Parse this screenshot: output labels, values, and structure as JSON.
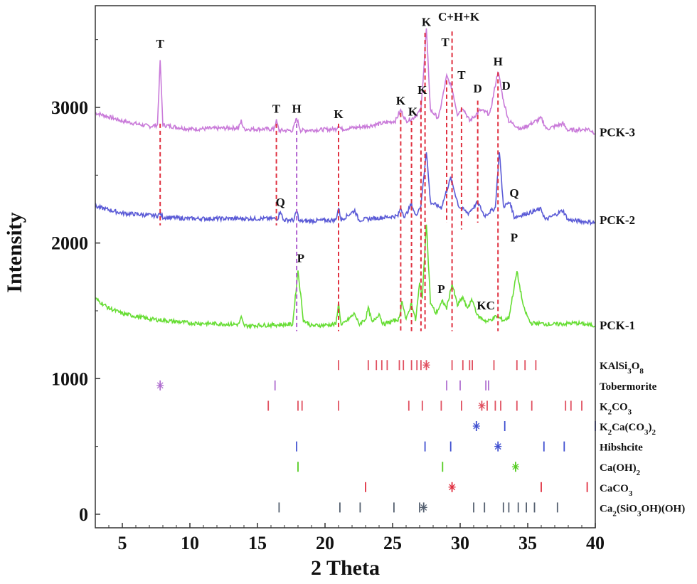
{
  "chart_data": {
    "type": "line",
    "xlabel": "2 Theta",
    "ylabel": "Intensity",
    "xlim": [
      3,
      40
    ],
    "ylim": [
      -100,
      3750
    ],
    "xticks": [
      5,
      10,
      15,
      20,
      25,
      30,
      35,
      40
    ],
    "yticks": [
      0,
      1000,
      2000,
      3000
    ],
    "grid": false,
    "series": [
      {
        "name": "PCK-3",
        "color": "#c97ad9",
        "baseline": 2820,
        "points": [
          [
            3,
            2960
          ],
          [
            5,
            2900
          ],
          [
            7,
            2860
          ],
          [
            7.6,
            2870
          ],
          [
            7.8,
            3350
          ],
          [
            8.0,
            2870
          ],
          [
            10,
            2840
          ],
          [
            13.6,
            2850
          ],
          [
            13.8,
            2900
          ],
          [
            14,
            2840
          ],
          [
            16.2,
            2840
          ],
          [
            16.4,
            2900
          ],
          [
            16.6,
            2830
          ],
          [
            17.6,
            2830
          ],
          [
            17.9,
            2920
          ],
          [
            18.2,
            2830
          ],
          [
            20.8,
            2840
          ],
          [
            21.0,
            2870
          ],
          [
            21.2,
            2840
          ],
          [
            23,
            2860
          ],
          [
            25.2,
            2900
          ],
          [
            25.6,
            2980
          ],
          [
            26.0,
            2900
          ],
          [
            26.5,
            2920
          ],
          [
            27.1,
            2980
          ],
          [
            27.5,
            3580
          ],
          [
            27.8,
            2980
          ],
          [
            28.4,
            2920
          ],
          [
            29.0,
            3230
          ],
          [
            29.4,
            3140
          ],
          [
            29.8,
            2950
          ],
          [
            30.2,
            3000
          ],
          [
            30.7,
            2900
          ],
          [
            31.5,
            2980
          ],
          [
            32.2,
            2950
          ],
          [
            32.8,
            3270
          ],
          [
            33.2,
            3050
          ],
          [
            33.6,
            2900
          ],
          [
            34.5,
            2840
          ],
          [
            36.0,
            2920
          ],
          [
            36.4,
            2840
          ],
          [
            37.6,
            2880
          ],
          [
            38,
            2830
          ],
          [
            39.5,
            2840
          ],
          [
            40,
            2810
          ]
        ]
      },
      {
        "name": "PCK-2",
        "color": "#5a5ad6",
        "baseline": 2160,
        "points": [
          [
            3,
            2270
          ],
          [
            5,
            2220
          ],
          [
            7.6,
            2200
          ],
          [
            7.8,
            2220
          ],
          [
            8.0,
            2190
          ],
          [
            10,
            2180
          ],
          [
            16.5,
            2180
          ],
          [
            16.7,
            2240
          ],
          [
            16.9,
            2170
          ],
          [
            17.7,
            2170
          ],
          [
            17.9,
            2240
          ],
          [
            18.1,
            2160
          ],
          [
            20.8,
            2170
          ],
          [
            21.0,
            2260
          ],
          [
            21.2,
            2170
          ],
          [
            22.2,
            2240
          ],
          [
            22.5,
            2170
          ],
          [
            25.4,
            2200
          ],
          [
            25.6,
            2260
          ],
          [
            25.9,
            2190
          ],
          [
            26.4,
            2290
          ],
          [
            26.7,
            2200
          ],
          [
            27.1,
            2280
          ],
          [
            27.5,
            2680
          ],
          [
            27.8,
            2300
          ],
          [
            28.6,
            2260
          ],
          [
            29.3,
            2480
          ],
          [
            29.9,
            2270
          ],
          [
            30.6,
            2220
          ],
          [
            31.3,
            2300
          ],
          [
            31.8,
            2200
          ],
          [
            32.6,
            2260
          ],
          [
            32.9,
            2680
          ],
          [
            33.2,
            2270
          ],
          [
            33.7,
            2300
          ],
          [
            34,
            2190
          ],
          [
            36,
            2250
          ],
          [
            36.3,
            2170
          ],
          [
            37.6,
            2240
          ],
          [
            38,
            2170
          ],
          [
            40,
            2150
          ]
        ]
      },
      {
        "name": "PCK-1",
        "color": "#66dd33",
        "baseline": 1380,
        "points": [
          [
            3,
            1590
          ],
          [
            4,
            1520
          ],
          [
            5,
            1480
          ],
          [
            7,
            1440
          ],
          [
            10,
            1410
          ],
          [
            13.6,
            1400
          ],
          [
            13.8,
            1450
          ],
          [
            14,
            1390
          ],
          [
            17.6,
            1400
          ],
          [
            18.0,
            1800
          ],
          [
            18.4,
            1430
          ],
          [
            19,
            1390
          ],
          [
            20.8,
            1400
          ],
          [
            21.0,
            1560
          ],
          [
            21.2,
            1390
          ],
          [
            22.2,
            1480
          ],
          [
            22.5,
            1400
          ],
          [
            23.0,
            1440
          ],
          [
            23.2,
            1520
          ],
          [
            23.5,
            1410
          ],
          [
            24.0,
            1480
          ],
          [
            24.3,
            1400
          ],
          [
            25.5,
            1440
          ],
          [
            25.7,
            1580
          ],
          [
            26.0,
            1430
          ],
          [
            26.4,
            1560
          ],
          [
            26.7,
            1430
          ],
          [
            27.0,
            1700
          ],
          [
            27.2,
            1600
          ],
          [
            27.5,
            2150
          ],
          [
            27.8,
            1560
          ],
          [
            28.2,
            1480
          ],
          [
            28.7,
            1570
          ],
          [
            29.0,
            1520
          ],
          [
            29.4,
            1700
          ],
          [
            29.8,
            1540
          ],
          [
            30.2,
            1600
          ],
          [
            30.5,
            1520
          ],
          [
            30.9,
            1580
          ],
          [
            31.3,
            1460
          ],
          [
            32.0,
            1420
          ],
          [
            32.7,
            1460
          ],
          [
            33.2,
            1430
          ],
          [
            33.6,
            1450
          ],
          [
            34.2,
            1790
          ],
          [
            34.7,
            1520
          ],
          [
            35.2,
            1410
          ],
          [
            37,
            1400
          ],
          [
            38.6,
            1410
          ],
          [
            40,
            1390
          ]
        ]
      }
    ],
    "series_labels": [
      {
        "text": "PCK-3",
        "y": 2820
      },
      {
        "text": "PCK-2",
        "y": 2170
      },
      {
        "text": "PCK-1",
        "y": 1395
      }
    ],
    "peak_labels": [
      {
        "text": "T",
        "x": 7.8,
        "y": 3440
      },
      {
        "text": "T",
        "x": 16.4,
        "y": 2960
      },
      {
        "text": "H",
        "x": 17.9,
        "y": 2960
      },
      {
        "text": "K",
        "x": 21.0,
        "y": 2920
      },
      {
        "text": "K",
        "x": 25.6,
        "y": 3020
      },
      {
        "text": "K",
        "x": 26.5,
        "y": 2940
      },
      {
        "text": "K",
        "x": 27.2,
        "y": 3100
      },
      {
        "text": "K",
        "x": 27.5,
        "y": 3600
      },
      {
        "text": "C+H+K",
        "x": 29.9,
        "y": 3640
      },
      {
        "text": "T",
        "x": 28.9,
        "y": 3450
      },
      {
        "text": "T",
        "x": 30.1,
        "y": 3210
      },
      {
        "text": "D",
        "x": 31.3,
        "y": 3110
      },
      {
        "text": "H",
        "x": 32.8,
        "y": 3310
      },
      {
        "text": "D",
        "x": 33.4,
        "y": 3130
      },
      {
        "text": "Q",
        "x": 16.7,
        "y": 2270
      },
      {
        "text": "Q",
        "x": 34.0,
        "y": 2340
      },
      {
        "text": "P",
        "x": 18.2,
        "y": 1860
      },
      {
        "text": "P",
        "x": 28.6,
        "y": 1630
      },
      {
        "text": "KC",
        "x": 31.9,
        "y": 1510
      },
      {
        "text": "P",
        "x": 34.0,
        "y": 2010
      }
    ],
    "guide_lines": [
      {
        "x": 7.8,
        "y1": 2880,
        "y2": 2130,
        "color": "#e03040"
      },
      {
        "x": 16.4,
        "y1": 2880,
        "y2": 2130,
        "color": "#e03040"
      },
      {
        "x": 17.9,
        "y1": 2880,
        "y2": 1350,
        "color": "#b060d0"
      },
      {
        "x": 21.0,
        "y1": 2880,
        "y2": 1350,
        "color": "#e03040"
      },
      {
        "x": 25.6,
        "y1": 2960,
        "y2": 1350,
        "color": "#e03040"
      },
      {
        "x": 26.4,
        "y1": 2900,
        "y2": 1350,
        "color": "#e03040"
      },
      {
        "x": 27.1,
        "y1": 3050,
        "y2": 1350,
        "color": "#e03040"
      },
      {
        "x": 27.4,
        "y1": 3550,
        "y2": 1350,
        "color": "#e03040"
      },
      {
        "x": 29.0,
        "y1": 3200,
        "y2": 2150,
        "color": "#e03040"
      },
      {
        "x": 29.4,
        "y1": 3560,
        "y2": 1350,
        "color": "#e03040"
      },
      {
        "x": 30.1,
        "y1": 3000,
        "y2": 2100,
        "color": "#e03040"
      },
      {
        "x": 31.3,
        "y1": 3050,
        "y2": 2150,
        "color": "#e03040"
      },
      {
        "x": 32.8,
        "y1": 3260,
        "y2": 1350,
        "color": "#e03040"
      }
    ],
    "reference_patterns": [
      {
        "name": "KAlSi3O8",
        "label_main": "KAlSi",
        "sub1": "3",
        "mid": "O",
        "sub2": "8",
        "tail": "",
        "y": 1100,
        "color": "#e05060",
        "markers": [
          21.0,
          23.2,
          23.8,
          24.2,
          24.6,
          25.5,
          25.8,
          26.4,
          26.8,
          27.1,
          27.5,
          29.4,
          30.2,
          30.7,
          30.9,
          32.5,
          34.2,
          34.8,
          35.6
        ],
        "star": 27.5
      },
      {
        "name": "Tobermorite",
        "label_main": "Tobermorite",
        "y": 950,
        "color": "#b070d0",
        "markers": [
          7.8,
          16.3,
          29.0,
          30.0,
          31.9,
          32.1
        ],
        "star": 7.8
      },
      {
        "name": "K2CO3",
        "label_main": "K",
        "sub1": "2",
        "mid": "CO",
        "sub2": "3",
        "tail": "",
        "y": 800,
        "color": "#e05060",
        "markers": [
          15.8,
          18.0,
          18.3,
          21.0,
          26.2,
          27.2,
          28.6,
          30.1,
          31.6,
          32.0,
          32.6,
          33.0,
          34.2,
          35.3,
          37.8,
          38.2,
          39.0
        ],
        "star": 31.6
      },
      {
        "name": "K2Ca(CO3)2",
        "label_main": "K",
        "sub1": "2",
        "mid": "Ca(CO",
        "sub2": "3",
        "tail": ")2",
        "y": 650,
        "color": "#4050d0",
        "markers": [
          31.2,
          33.3,
          40.0
        ],
        "star": 31.2
      },
      {
        "name": "Hibshcite",
        "label_main": "Hibshcite",
        "y": 500,
        "color": "#4050d0",
        "markers": [
          17.9,
          27.4,
          29.3,
          32.8,
          36.2,
          37.7
        ],
        "star": 32.8
      },
      {
        "name": "Ca(OH)2",
        "label_main": "Ca(OH)",
        "sub1": "2",
        "y": 350,
        "color": "#55cc22",
        "markers": [
          18.0,
          28.7,
          34.1
        ],
        "star": 34.1
      },
      {
        "name": "CaCO3",
        "label_main": "CaCO",
        "sub1": "3",
        "y": 200,
        "color": "#e03040",
        "markers": [
          23.0,
          29.4,
          36.0,
          39.4
        ],
        "star": 29.4
      },
      {
        "name": "Ca2(SiO3OH)(OH)",
        "label_main": "Ca",
        "sub1": "2",
        "mid": "(SiO",
        "sub2": "3",
        "tail": "OH)(OH)",
        "y": 50,
        "color": "#556070",
        "markers": [
          16.6,
          21.1,
          22.6,
          25.1,
          27.0,
          27.3,
          31.0,
          31.8,
          33.2,
          33.6,
          34.3,
          34.9,
          35.5,
          37.2
        ],
        "star": 27.3
      }
    ]
  }
}
